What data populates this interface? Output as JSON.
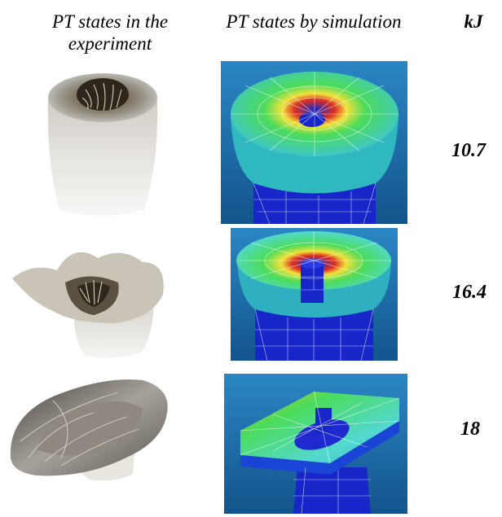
{
  "headers": {
    "experiment_line1": "PT states in the",
    "experiment_line2": "experiment",
    "simulation": "PT states by simulation",
    "energy_unit": "kJ"
  },
  "rows": [
    {
      "energy": "10.7",
      "experiment_image": "experiment-photo-light-damage",
      "simulation_image": "fem-mesh-cup-shallow"
    },
    {
      "energy": "16.4",
      "experiment_image": "experiment-photo-torn-rim",
      "simulation_image": "fem-mesh-cup-deep"
    },
    {
      "energy": "18",
      "experiment_image": "experiment-photo-collapsed",
      "simulation_image": "fem-mesh-tilted-disc"
    }
  ],
  "colors": {
    "sim_background": "#1a6fb0",
    "mesh_blue": "#1626c8",
    "mesh_cyan": "#3fd6c8",
    "mesh_green": "#4cdc5a",
    "mesh_yellow": "#f2e23a",
    "mesh_red": "#e03020"
  }
}
